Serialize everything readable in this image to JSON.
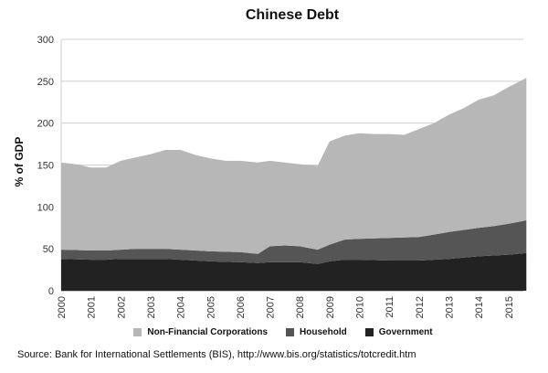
{
  "chart_data": {
    "type": "area",
    "stacked": true,
    "title": "Chinese Debt",
    "xlabel": "",
    "ylabel": "% of GDP",
    "ylim": [
      0,
      300
    ],
    "yticks": [
      0,
      50,
      100,
      150,
      200,
      250,
      300
    ],
    "xlim": [
      2000,
      2015.6
    ],
    "xticks": [
      "2000",
      "2001",
      "2002",
      "2003",
      "2004",
      "2005",
      "2006",
      "2007",
      "2008",
      "2009",
      "2010",
      "2011",
      "2012",
      "2013",
      "2014",
      "2015"
    ],
    "grid": "horizontal",
    "legend_position": "bottom",
    "x": [
      2000,
      2000.5,
      2001,
      2001.5,
      2002,
      2002.5,
      2003,
      2003.5,
      2004,
      2004.5,
      2005,
      2005.5,
      2006,
      2006.6,
      2007,
      2007.5,
      2008,
      2008.6,
      2009,
      2009.5,
      2010,
      2010.5,
      2011,
      2011.5,
      2012,
      2012.5,
      2013,
      2013.5,
      2014,
      2014.5,
      2015,
      2015.6
    ],
    "series": [
      {
        "name": "Government",
        "color": "#222222",
        "values": [
          38,
          37.5,
          37,
          37,
          38,
          38,
          38,
          38,
          37,
          36,
          35,
          34.5,
          34,
          33,
          34,
          34,
          34,
          32,
          35,
          37,
          37,
          36.5,
          36,
          36,
          36,
          37,
          38,
          39.5,
          41,
          42,
          43,
          45
        ]
      },
      {
        "name": "Household",
        "color": "#555555",
        "values": [
          11,
          11,
          11,
          11,
          11,
          12,
          12,
          12,
          12,
          12,
          12,
          12,
          12,
          11,
          19,
          20,
          19,
          17,
          20,
          24,
          25,
          26,
          27,
          27.5,
          28,
          30,
          32,
          33,
          34,
          35,
          37,
          39
        ]
      },
      {
        "name": "Non-Financial Corporations",
        "color": "#b7b7b7",
        "values": [
          104,
          102.5,
          99,
          99,
          106,
          109,
          113,
          118,
          119,
          114,
          111,
          108.5,
          109,
          109,
          102,
          99,
          98,
          100,
          123,
          124,
          126,
          124.5,
          124,
          122.5,
          129,
          133,
          140,
          145.5,
          153,
          156,
          163,
          170
        ]
      }
    ],
    "totals": [
      153,
      151,
      147,
      147,
      155,
      159,
      163,
      168,
      168,
      162,
      158,
      155,
      155,
      153,
      155,
      153,
      151,
      149,
      178,
      185,
      188,
      187,
      187,
      186,
      193,
      200,
      210,
      218,
      228,
      233,
      243,
      254
    ],
    "source": "Source: Bank for International Settlements (BIS), http://www.bis.org/statistics/totcredit.htm"
  },
  "title": "Chinese Debt",
  "ylabel": "% of GDP",
  "legend": [
    {
      "label": "Non-Financial Corporations",
      "color": "#b7b7b7"
    },
    {
      "label": "Household",
      "color": "#555555"
    },
    {
      "label": "Government",
      "color": "#222222"
    }
  ],
  "source": "Source: Bank for International Settlements (BIS), http://www.bis.org/statistics/totcredit.htm"
}
